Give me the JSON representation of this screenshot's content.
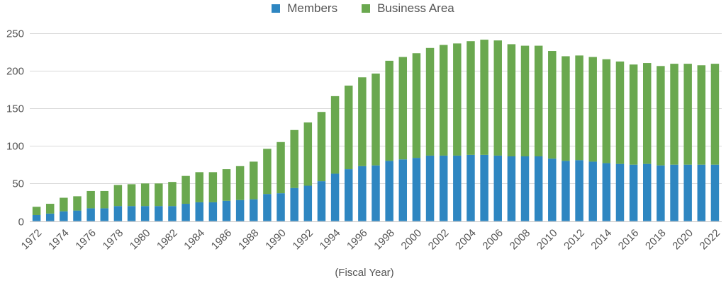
{
  "chart_data": {
    "type": "bar",
    "stacked": true,
    "title": "",
    "xlabel": "(Fiscal Year)",
    "ylabel": "",
    "ylim": [
      0,
      250
    ],
    "yticks": [
      0,
      50,
      100,
      150,
      200,
      250
    ],
    "legend": "top-center",
    "grid": true,
    "categories": [
      "1972",
      "1973",
      "1974",
      "1975",
      "1976",
      "1977",
      "1978",
      "1979",
      "1980",
      "1981",
      "1982",
      "1983",
      "1984",
      "1985",
      "1986",
      "1987",
      "1988",
      "1989",
      "1990",
      "1991",
      "1992",
      "1993",
      "1994",
      "1995",
      "1996",
      "1997",
      "1998",
      "1999",
      "2000",
      "2001",
      "2002",
      "2003",
      "2004",
      "2005",
      "2006",
      "2007",
      "2008",
      "2009",
      "2010",
      "2011",
      "2012",
      "2013",
      "2014",
      "2015",
      "2016",
      "2017",
      "2018",
      "2019",
      "2020",
      "2021",
      "2022"
    ],
    "xtick_labels": [
      "1972",
      "1974",
      "1976",
      "1978",
      "1980",
      "1982",
      "1984",
      "1986",
      "1988",
      "1990",
      "1992",
      "1994",
      "1996",
      "1998",
      "2000",
      "2002",
      "2004",
      "2006",
      "2008",
      "2010",
      "2012",
      "2014",
      "2016",
      "2018",
      "2020",
      "2022"
    ],
    "series": [
      {
        "name": "Members",
        "color": "#2e86c1",
        "values": [
          8,
          10,
          13,
          14,
          17,
          17,
          20,
          20,
          20,
          20,
          20,
          23,
          25,
          25,
          27,
          28,
          29,
          36,
          37,
          44,
          47,
          53,
          63,
          69,
          73,
          74,
          80,
          82,
          84,
          87,
          87,
          87,
          88,
          88,
          87,
          86,
          86,
          86,
          83,
          80,
          81,
          79,
          77,
          76,
          75,
          76,
          74,
          75,
          75,
          75,
          75
        ]
      },
      {
        "name": "Business Area",
        "color": "#6aa84f",
        "values": [
          11,
          13,
          18,
          19,
          23,
          23,
          28,
          29,
          30,
          30,
          32,
          37,
          40,
          40,
          42,
          45,
          50,
          60,
          68,
          77,
          84,
          92,
          103,
          111,
          118,
          122,
          133,
          136,
          139,
          143,
          147,
          149,
          151,
          153,
          153,
          149,
          147,
          147,
          143,
          139,
          139,
          139,
          138,
          136,
          133,
          134,
          132,
          134,
          134,
          132,
          134
        ]
      }
    ]
  }
}
